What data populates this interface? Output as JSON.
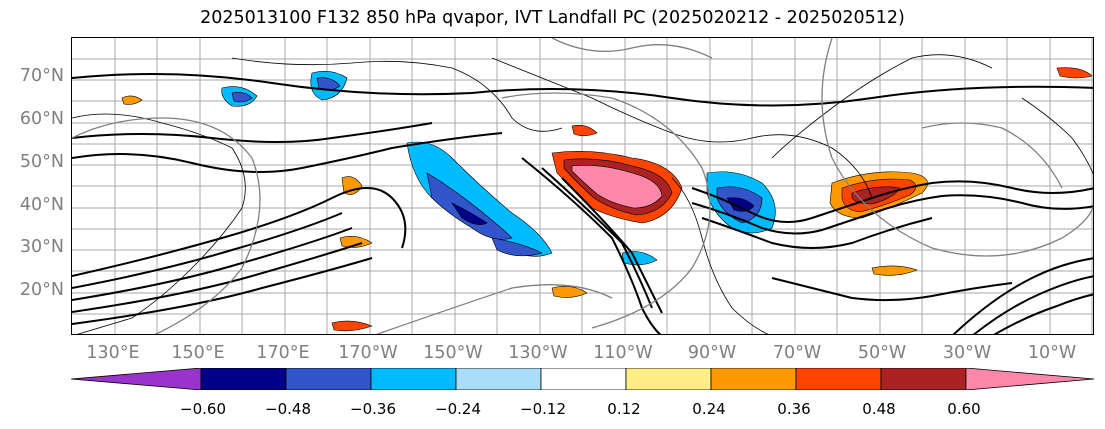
{
  "title": "2025013100 F132 850 hPa qvapor, IVT Landfall PC (2025020212 - 2025020512)",
  "map": {
    "lat_labels": [
      "70°N",
      "60°N",
      "50°N",
      "40°N",
      "30°N",
      "20°N"
    ],
    "lon_labels": [
      "130°E",
      "150°E",
      "170°E",
      "170°W",
      "150°W",
      "130°W",
      "110°W",
      "90°W",
      "70°W",
      "50°W",
      "30°W",
      "10°W"
    ]
  },
  "colorbar": {
    "colors": [
      "#9933cc",
      "#000088",
      "#3355cc",
      "#00bbff",
      "#aaddf7",
      "#ffffff",
      "#ffee88",
      "#ff9900",
      "#ff4400",
      "#aa2222",
      "#ff88aa"
    ],
    "tick_labels": [
      "−0.60",
      "−0.48",
      "−0.36",
      "−0.24",
      "−0.12",
      "0.12",
      "0.24",
      "0.36",
      "0.48",
      "0.60"
    ]
  }
}
